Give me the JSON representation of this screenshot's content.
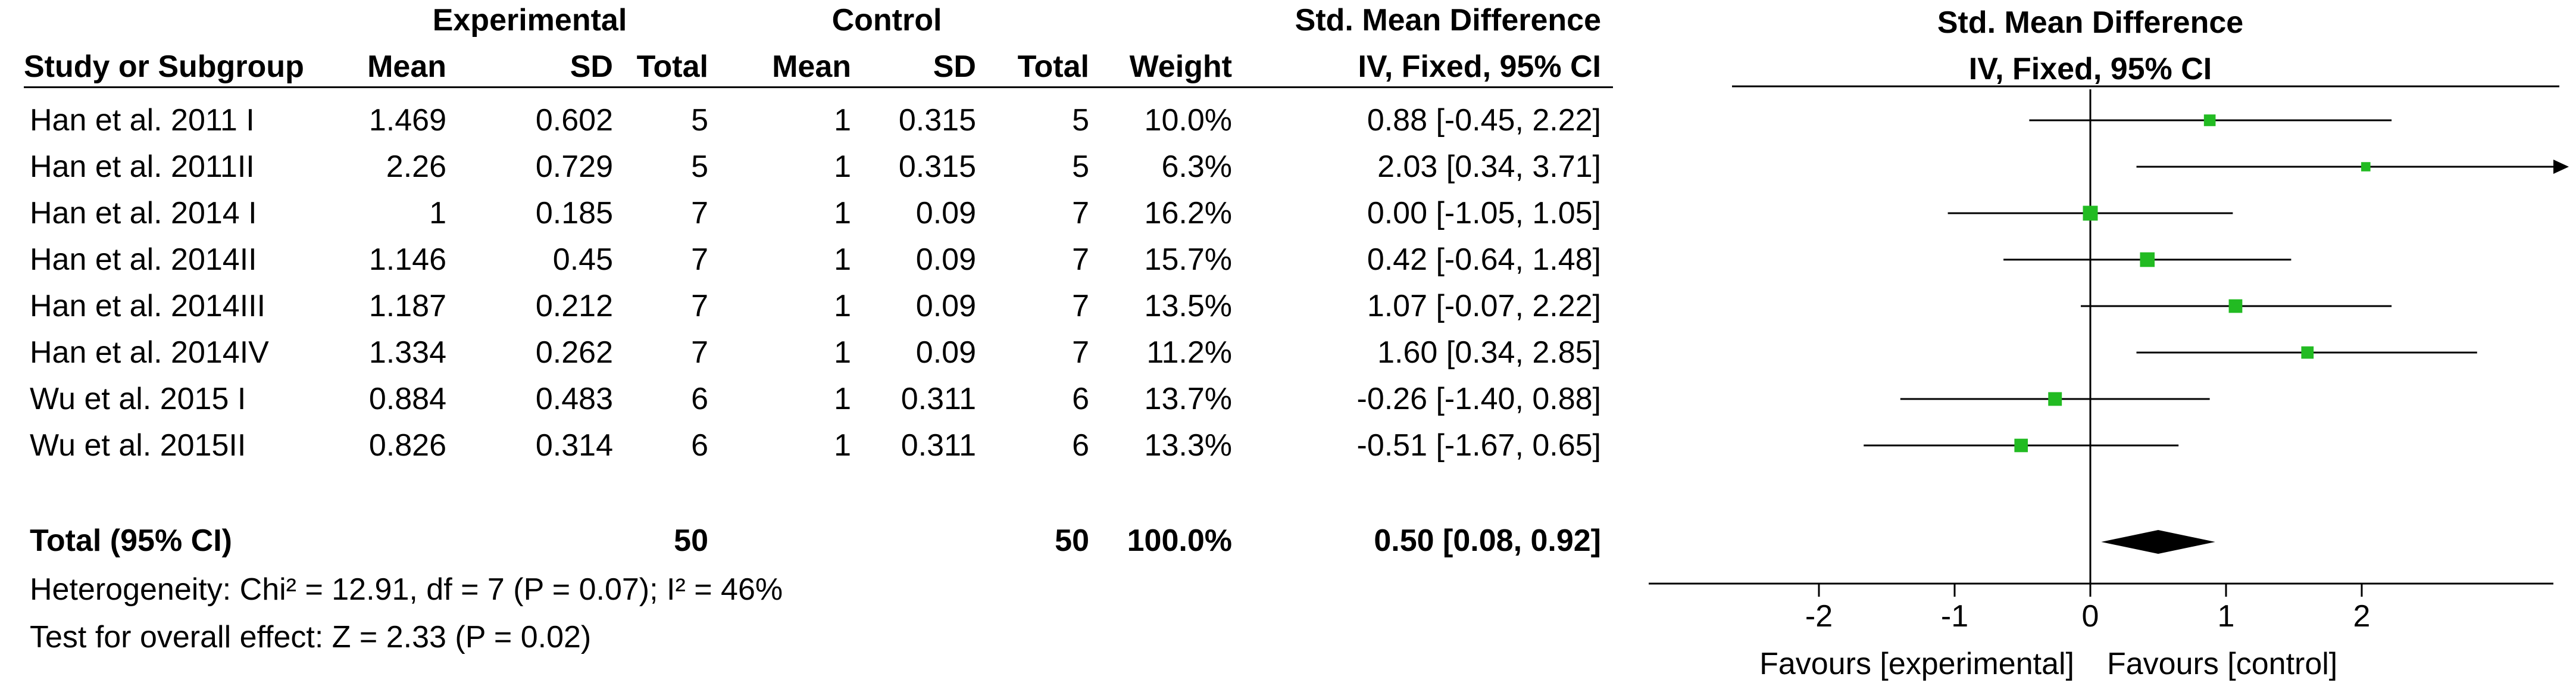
{
  "table": {
    "group_headers": {
      "experimental": "Experimental",
      "control": "Control",
      "smd": "Std. Mean Difference"
    },
    "columns": {
      "study": "Study or Subgroup",
      "exp_mean": "Mean",
      "exp_sd": "SD",
      "exp_total": "Total",
      "ctl_mean": "Mean",
      "ctl_sd": "SD",
      "ctl_total": "Total",
      "weight": "Weight",
      "ci": "IV, Fixed, 95% CI"
    },
    "rows": [
      {
        "study": "Han et al. 2011 I",
        "exp_mean": "1.469",
        "exp_sd": "0.602",
        "exp_total": "5",
        "ctl_mean": "1",
        "ctl_sd": "0.315",
        "ctl_total": "5",
        "weight": "10.0%",
        "ci": "0.88 [-0.45, 2.22]"
      },
      {
        "study": "Han et al. 2011II",
        "exp_mean": "2.26",
        "exp_sd": "0.729",
        "exp_total": "5",
        "ctl_mean": "1",
        "ctl_sd": "0.315",
        "ctl_total": "5",
        "weight": "6.3%",
        "ci": "2.03 [0.34, 3.71]"
      },
      {
        "study": "Han et al. 2014 I",
        "exp_mean": "1",
        "exp_sd": "0.185",
        "exp_total": "7",
        "ctl_mean": "1",
        "ctl_sd": "0.09",
        "ctl_total": "7",
        "weight": "16.2%",
        "ci": "0.00 [-1.05, 1.05]"
      },
      {
        "study": "Han et al. 2014II",
        "exp_mean": "1.146",
        "exp_sd": "0.45",
        "exp_total": "7",
        "ctl_mean": "1",
        "ctl_sd": "0.09",
        "ctl_total": "7",
        "weight": "15.7%",
        "ci": "0.42 [-0.64, 1.48]"
      },
      {
        "study": "Han et al. 2014III",
        "exp_mean": "1.187",
        "exp_sd": "0.212",
        "exp_total": "7",
        "ctl_mean": "1",
        "ctl_sd": "0.09",
        "ctl_total": "7",
        "weight": "13.5%",
        "ci": "1.07 [-0.07, 2.22]"
      },
      {
        "study": "Han et al. 2014IV",
        "exp_mean": "1.334",
        "exp_sd": "0.262",
        "exp_total": "7",
        "ctl_mean": "1",
        "ctl_sd": "0.09",
        "ctl_total": "7",
        "weight": "11.2%",
        "ci": "1.60 [0.34, 2.85]"
      },
      {
        "study": "Wu et al. 2015 I",
        "exp_mean": "0.884",
        "exp_sd": "0.483",
        "exp_total": "6",
        "ctl_mean": "1",
        "ctl_sd": "0.311",
        "ctl_total": "6",
        "weight": "13.7%",
        "ci": "-0.26 [-1.40, 0.88]"
      },
      {
        "study": "Wu et al. 2015II",
        "exp_mean": "0.826",
        "exp_sd": "0.314",
        "exp_total": "6",
        "ctl_mean": "1",
        "ctl_sd": "0.311",
        "ctl_total": "6",
        "weight": "13.3%",
        "ci": "-0.51 [-1.67, 0.65]"
      }
    ],
    "total": {
      "study": "Total (95% CI)",
      "exp_total": "50",
      "ctl_total": "50",
      "weight": "100.0%",
      "ci": "0.50 [0.08, 0.92]"
    },
    "heterogeneity": "Heterogeneity: Chi² = 12.91, df = 7 (P = 0.07); I² = 46%",
    "overall_effect": "Test for overall effect: Z = 2.33 (P = 0.02)"
  },
  "chart_data": {
    "type": "scatter",
    "title": "Std. Mean Difference",
    "subtitle": "IV, Fixed, 95% CI",
    "xlim": [
      -3.33,
      3.33
    ],
    "ticks": [
      -2,
      -1,
      0,
      1,
      2
    ],
    "tick_labels": [
      "-2",
      "-1",
      "0",
      "1",
      "2"
    ],
    "reference_line": 0,
    "favours_left": "Favours [experimental]",
    "favours_right": "Favours [control]",
    "series": [
      {
        "points": [
          {
            "study": "Han et al. 2011 I",
            "est": 0.88,
            "lo": -0.45,
            "hi": 2.22,
            "weight": 10.0
          },
          {
            "study": "Han et al. 2011II",
            "est": 2.03,
            "lo": 0.34,
            "hi": 3.71,
            "weight": 6.3
          },
          {
            "study": "Han et al. 2014 I",
            "est": 0.0,
            "lo": -1.05,
            "hi": 1.05,
            "weight": 16.2
          },
          {
            "study": "Han et al. 2014II",
            "est": 0.42,
            "lo": -0.64,
            "hi": 1.48,
            "weight": 15.7
          },
          {
            "study": "Han et al. 2014III",
            "est": 1.07,
            "lo": -0.07,
            "hi": 2.22,
            "weight": 13.5
          },
          {
            "study": "Han et al. 2014IV",
            "est": 1.6,
            "lo": 0.34,
            "hi": 2.85,
            "weight": 11.2
          },
          {
            "study": "Wu et al. 2015 I",
            "est": -0.26,
            "lo": -1.4,
            "hi": 0.88,
            "weight": 13.7
          },
          {
            "study": "Wu et al. 2015II",
            "est": -0.51,
            "lo": -1.67,
            "hi": 0.65,
            "weight": 13.3
          }
        ]
      }
    ],
    "pooled": {
      "est": 0.5,
      "lo": 0.08,
      "hi": 0.92
    },
    "colors": {
      "marker": "#22bb22",
      "line": "#000000",
      "diamond": "#000000"
    }
  }
}
